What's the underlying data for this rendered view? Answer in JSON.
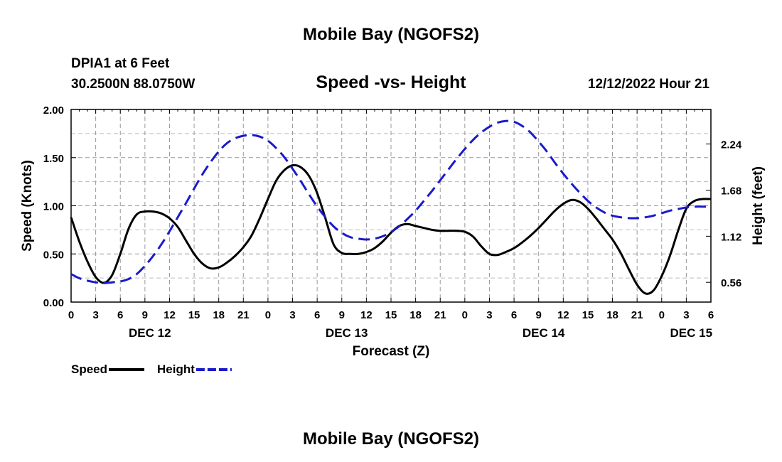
{
  "header": {
    "title_top": "Mobile Bay (NGOFS2)",
    "station": "DPIA1 at 6 Feet",
    "coords": "30.2500N  88.0750W",
    "subtitle": "Speed -vs- Height",
    "datetime": "12/12/2022 Hour 21",
    "title_bottom": "Mobile Bay (NGOFS2)"
  },
  "chart_data": {
    "type": "line",
    "title": "Speed -vs- Height",
    "xlabel": "Forecast (Z)",
    "ylabel": "Speed (Knots)",
    "y2label": "Height (feet)",
    "xlim": [
      0,
      78
    ],
    "ylim": [
      0,
      2.0
    ],
    "y2lim": [
      0.32,
      2.66
    ],
    "grid": true,
    "x_ticks": [
      {
        "h": 0,
        "label": "0"
      },
      {
        "h": 3,
        "label": "3"
      },
      {
        "h": 6,
        "label": "6"
      },
      {
        "h": 9,
        "label": "9"
      },
      {
        "h": 12,
        "label": "12"
      },
      {
        "h": 15,
        "label": "15"
      },
      {
        "h": 18,
        "label": "18"
      },
      {
        "h": 21,
        "label": "21"
      },
      {
        "h": 24,
        "label": "0"
      },
      {
        "h": 27,
        "label": "3"
      },
      {
        "h": 30,
        "label": "6"
      },
      {
        "h": 33,
        "label": "9"
      },
      {
        "h": 36,
        "label": "12"
      },
      {
        "h": 39,
        "label": "15"
      },
      {
        "h": 42,
        "label": "18"
      },
      {
        "h": 45,
        "label": "21"
      },
      {
        "h": 48,
        "label": "0"
      },
      {
        "h": 51,
        "label": "3"
      },
      {
        "h": 54,
        "label": "6"
      },
      {
        "h": 57,
        "label": "9"
      },
      {
        "h": 60,
        "label": "12"
      },
      {
        "h": 63,
        "label": "15"
      },
      {
        "h": 66,
        "label": "18"
      },
      {
        "h": 69,
        "label": "21"
      },
      {
        "h": 72,
        "label": "0"
      },
      {
        "h": 75,
        "label": "3"
      },
      {
        "h": 78,
        "label": "6"
      }
    ],
    "day_labels": [
      {
        "h": 9.6,
        "label": "DEC 12"
      },
      {
        "h": 33.6,
        "label": "DEC 13"
      },
      {
        "h": 57.6,
        "label": "DEC 14"
      },
      {
        "h": 75.6,
        "label": "DEC 15"
      }
    ],
    "y_ticks": [
      0.0,
      0.5,
      1.0,
      1.5,
      2.0
    ],
    "y_tick_labels": [
      "0.00",
      "0.50",
      "1.00",
      "1.50",
      "2.00"
    ],
    "y2_ticks": [
      0.56,
      1.12,
      1.68,
      2.24
    ],
    "y2_tick_labels": [
      "0.56",
      "1.12",
      "1.68",
      "2.24"
    ],
    "series": [
      {
        "name": "Speed",
        "axis": "left",
        "color": "#000000",
        "style": "solid",
        "x": [
          0,
          1,
          2,
          3,
          4,
          5,
          6,
          7,
          8,
          9,
          10,
          11,
          12,
          13,
          14,
          15,
          16,
          17,
          18,
          19,
          20,
          21,
          22,
          23,
          24,
          25,
          26,
          27,
          28,
          29,
          30,
          31,
          32,
          33,
          34,
          35,
          36,
          37,
          38,
          39,
          40,
          41,
          42,
          43,
          44,
          45,
          46,
          47,
          48,
          49,
          50,
          51,
          52,
          53,
          54,
          55,
          56,
          57,
          58,
          59,
          60,
          61,
          62,
          63,
          64,
          65,
          66,
          67,
          68,
          69,
          70,
          71,
          72,
          73,
          74,
          75,
          76,
          77,
          78
        ],
        "values": [
          0.88,
          0.63,
          0.42,
          0.26,
          0.2,
          0.28,
          0.5,
          0.76,
          0.91,
          0.94,
          0.94,
          0.92,
          0.87,
          0.78,
          0.64,
          0.5,
          0.4,
          0.35,
          0.36,
          0.41,
          0.48,
          0.57,
          0.69,
          0.87,
          1.07,
          1.26,
          1.37,
          1.42,
          1.4,
          1.31,
          1.13,
          0.87,
          0.6,
          0.51,
          0.5,
          0.5,
          0.52,
          0.56,
          0.63,
          0.72,
          0.79,
          0.81,
          0.79,
          0.77,
          0.75,
          0.74,
          0.74,
          0.74,
          0.73,
          0.68,
          0.58,
          0.5,
          0.49,
          0.52,
          0.56,
          0.62,
          0.69,
          0.77,
          0.86,
          0.95,
          1.02,
          1.06,
          1.04,
          0.97,
          0.87,
          0.76,
          0.65,
          0.51,
          0.34,
          0.18,
          0.09,
          0.12,
          0.27,
          0.48,
          0.74,
          0.97,
          1.05,
          1.07,
          1.07
        ]
      },
      {
        "name": "Height",
        "axis": "right",
        "color": "#1a1acc",
        "style": "dashed",
        "x": [
          0,
          1,
          2,
          3,
          4,
          5,
          6,
          7,
          8,
          9,
          10,
          11,
          12,
          13,
          14,
          15,
          16,
          17,
          18,
          19,
          20,
          21,
          22,
          23,
          24,
          25,
          26,
          27,
          28,
          29,
          30,
          31,
          32,
          33,
          34,
          35,
          36,
          37,
          38,
          39,
          40,
          41,
          42,
          43,
          44,
          45,
          46,
          47,
          48,
          49,
          50,
          51,
          52,
          53,
          54,
          55,
          56,
          57,
          58,
          59,
          60,
          61,
          62,
          63,
          64,
          65,
          66,
          67,
          68,
          69,
          70,
          71,
          72,
          73,
          74,
          75,
          76,
          77,
          78
        ],
        "values": [
          0.66,
          0.61,
          0.58,
          0.56,
          0.55,
          0.56,
          0.57,
          0.6,
          0.66,
          0.76,
          0.88,
          1.02,
          1.18,
          1.35,
          1.52,
          1.7,
          1.87,
          2.02,
          2.15,
          2.25,
          2.31,
          2.34,
          2.35,
          2.33,
          2.28,
          2.19,
          2.08,
          1.94,
          1.79,
          1.63,
          1.48,
          1.35,
          1.24,
          1.16,
          1.11,
          1.09,
          1.08,
          1.09,
          1.12,
          1.17,
          1.24,
          1.33,
          1.43,
          1.55,
          1.67,
          1.8,
          1.93,
          2.06,
          2.18,
          2.29,
          2.38,
          2.45,
          2.5,
          2.52,
          2.51,
          2.46,
          2.38,
          2.27,
          2.15,
          2.01,
          1.88,
          1.76,
          1.65,
          1.55,
          1.47,
          1.41,
          1.37,
          1.35,
          1.34,
          1.34,
          1.35,
          1.37,
          1.4,
          1.43,
          1.45,
          1.47,
          1.48,
          1.48,
          1.48
        ]
      }
    ],
    "legend": [
      {
        "label": "Speed",
        "color": "#000000",
        "style": "solid"
      },
      {
        "label": "Height",
        "color": "#1a1acc",
        "style": "dashed"
      }
    ],
    "legend_position": "bottom-left"
  }
}
